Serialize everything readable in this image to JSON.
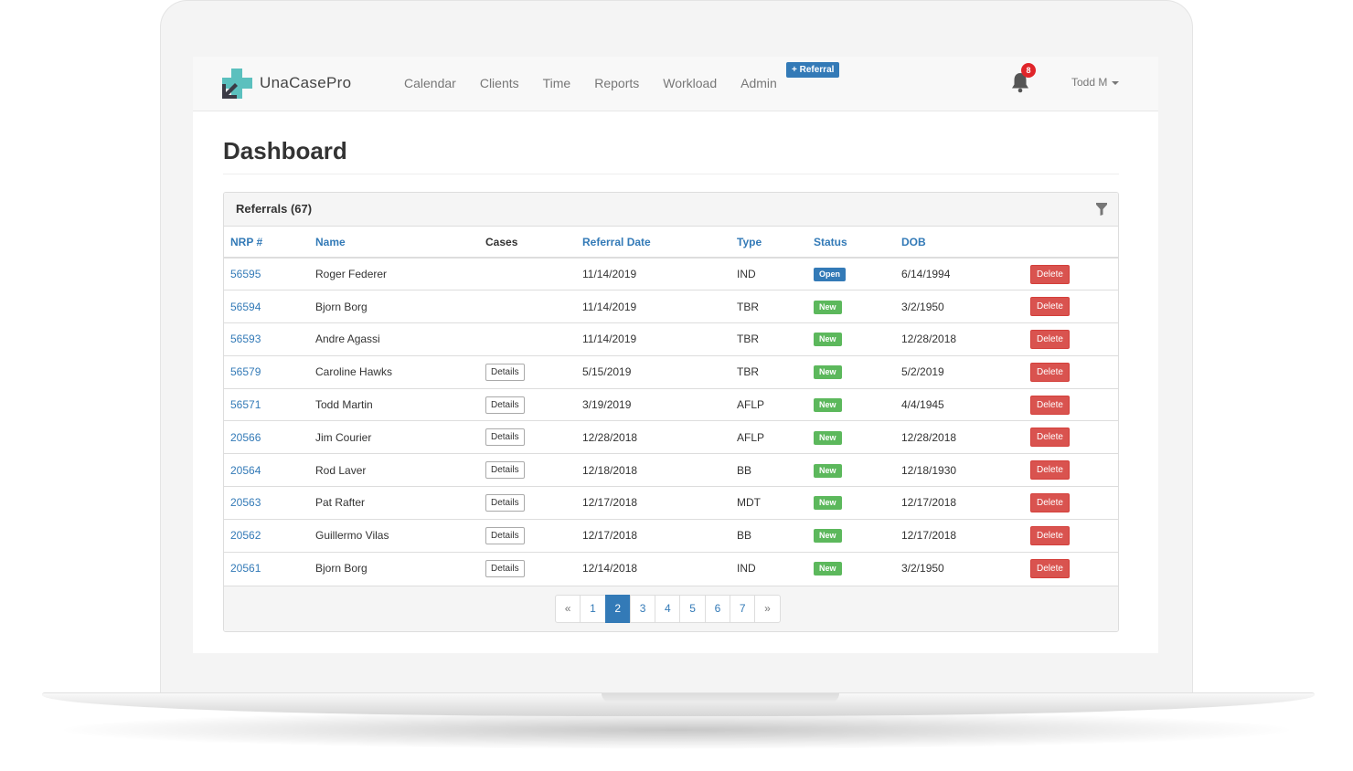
{
  "brand": {
    "name": "UnaCasePro"
  },
  "nav": {
    "links": [
      "Calendar",
      "Clients",
      "Time",
      "Reports",
      "Workload",
      "Admin"
    ],
    "referral_button": "+ Referral",
    "notifications_count": "8",
    "user": "Todd M"
  },
  "page": {
    "title": "Dashboard"
  },
  "referrals": {
    "title": "Referrals (67)",
    "columns": [
      "NRP #",
      "Name",
      "Cases",
      "Referral Date",
      "Type",
      "Status",
      "DOB"
    ],
    "delete_label": "Delete",
    "details_label": "Details",
    "rows": [
      {
        "nrp": "56595",
        "name": "Roger Federer",
        "cases": "",
        "referral_date": "11/14/2019",
        "type": "IND",
        "status": "Open",
        "dob": "6/14/1994"
      },
      {
        "nrp": "56594",
        "name": "Bjorn Borg",
        "cases": "",
        "referral_date": "11/14/2019",
        "type": "TBR",
        "status": "New",
        "dob": "3/2/1950"
      },
      {
        "nrp": "56593",
        "name": "Andre Agassi",
        "cases": "",
        "referral_date": "11/14/2019",
        "type": "TBR",
        "status": "New",
        "dob": "12/28/2018"
      },
      {
        "nrp": "56579",
        "name": "Caroline Hawks",
        "cases": "Details",
        "referral_date": "5/15/2019",
        "type": "TBR",
        "status": "New",
        "dob": "5/2/2019"
      },
      {
        "nrp": "56571",
        "name": "Todd Martin",
        "cases": "Details",
        "referral_date": "3/19/2019",
        "type": "AFLP",
        "status": "New",
        "dob": "4/4/1945"
      },
      {
        "nrp": "20566",
        "name": "Jim Courier",
        "cases": "Details",
        "referral_date": "12/28/2018",
        "type": "AFLP",
        "status": "New",
        "dob": "12/28/2018"
      },
      {
        "nrp": "20564",
        "name": "Rod Laver",
        "cases": "Details",
        "referral_date": "12/18/2018",
        "type": "BB",
        "status": "New",
        "dob": "12/18/1930"
      },
      {
        "nrp": "20563",
        "name": "Pat Rafter",
        "cases": "Details",
        "referral_date": "12/17/2018",
        "type": "MDT",
        "status": "New",
        "dob": "12/17/2018"
      },
      {
        "nrp": "20562",
        "name": "Guillermo Vilas",
        "cases": "Details",
        "referral_date": "12/17/2018",
        "type": "BB",
        "status": "New",
        "dob": "12/17/2018"
      },
      {
        "nrp": "20561",
        "name": "Bjorn Borg",
        "cases": "Details",
        "referral_date": "12/14/2018",
        "type": "IND",
        "status": "New",
        "dob": "3/2/1950"
      }
    ]
  },
  "pagination": {
    "prev": "«",
    "next": "»",
    "pages": [
      "1",
      "2",
      "3",
      "4",
      "5",
      "6",
      "7"
    ],
    "active": "2"
  },
  "colors": {
    "link": "#337ab7",
    "open_badge": "#337ab7",
    "new_badge": "#5cb85c",
    "delete_button": "#d9534f",
    "notification_badge": "#e0252a",
    "logo": "#5bc0be"
  },
  "icons": {
    "logo": "plus-arrow-logo-icon",
    "notifications": "bell-icon",
    "user_menu": "caret-down-icon",
    "filter": "filter-icon"
  }
}
